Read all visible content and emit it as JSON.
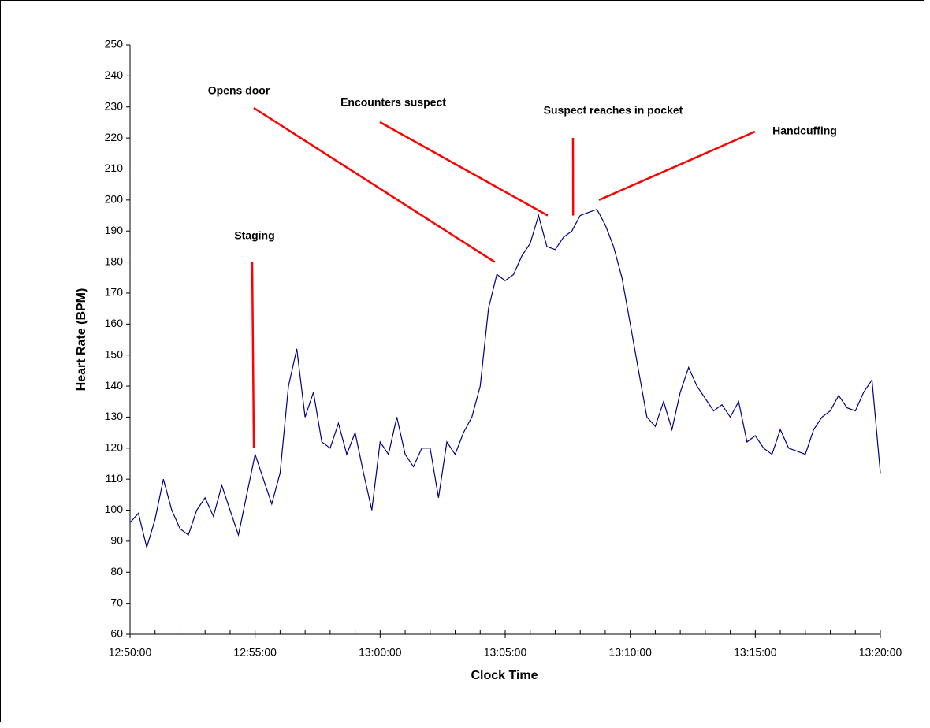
{
  "chart_data": {
    "type": "line",
    "x_label": "Clock Time",
    "y_label": "Heart Rate (BPM)",
    "color": "#000080",
    "annotation_color": "#ff0000",
    "xlim": [
      "12:50:00",
      "13:20:00"
    ],
    "xticks": [
      "12:50:00",
      "12:55:00",
      "13:00:00",
      "13:05:00",
      "13:10:00",
      "13:15:00",
      "13:20:00"
    ],
    "xminor_ticks": [
      "12:51:00",
      "12:52:00",
      "12:53:00",
      "12:54:00",
      "12:56:00",
      "12:57:00",
      "12:58:00",
      "12:59:00",
      "13:01:00",
      "13:02:00",
      "13:03:00",
      "13:04:00",
      "13:06:00",
      "13:07:00",
      "13:08:00",
      "13:09:00",
      "13:11:00",
      "13:12:00",
      "13:13:00",
      "13:14:00",
      "13:16:00",
      "13:17:00",
      "13:18:00",
      "13:19:00"
    ],
    "ylim": [
      60,
      250
    ],
    "yticks": [
      60,
      70,
      80,
      90,
      100,
      110,
      120,
      130,
      140,
      150,
      160,
      170,
      180,
      190,
      200,
      210,
      220,
      230,
      240,
      250
    ],
    "x": [
      "12:50:00",
      "12:50:20",
      "12:50:40",
      "12:51:00",
      "12:51:20",
      "12:51:40",
      "12:52:00",
      "12:52:20",
      "12:52:40",
      "12:53:00",
      "12:53:20",
      "12:53:40",
      "12:54:00",
      "12:54:20",
      "12:54:40",
      "12:55:00",
      "12:55:20",
      "12:55:40",
      "12:56:00",
      "12:56:20",
      "12:56:40",
      "12:57:00",
      "12:57:20",
      "12:57:40",
      "12:58:00",
      "12:58:20",
      "12:58:40",
      "12:59:00",
      "12:59:20",
      "12:59:40",
      "13:00:00",
      "13:00:20",
      "13:00:40",
      "13:01:00",
      "13:01:20",
      "13:01:40",
      "13:02:00",
      "13:02:20",
      "13:02:40",
      "13:03:00",
      "13:03:20",
      "13:03:40",
      "13:04:00",
      "13:04:20",
      "13:04:40",
      "13:05:00",
      "13:05:20",
      "13:05:40",
      "13:06:00",
      "13:06:20",
      "13:06:40",
      "13:07:00",
      "13:07:20",
      "13:07:40",
      "13:08:00",
      "13:08:20",
      "13:08:40",
      "13:09:00",
      "13:09:20",
      "13:09:40",
      "13:10:00",
      "13:10:20",
      "13:10:40",
      "13:11:00",
      "13:11:20",
      "13:11:40",
      "13:12:00",
      "13:12:20",
      "13:12:40",
      "13:13:00",
      "13:13:20",
      "13:13:40",
      "13:14:00",
      "13:14:20",
      "13:14:40",
      "13:15:00",
      "13:15:20",
      "13:15:40",
      "13:16:00",
      "13:16:20",
      "13:16:40",
      "13:17:00",
      "13:17:20",
      "13:17:40",
      "13:18:00",
      "13:18:20",
      "13:18:40",
      "13:19:00",
      "13:19:20",
      "13:19:40",
      "13:20:00"
    ],
    "values": [
      96,
      99,
      88,
      97,
      110,
      100,
      94,
      92,
      100,
      104,
      98,
      108,
      100,
      92,
      105,
      118,
      110,
      102,
      112,
      140,
      152,
      130,
      138,
      122,
      120,
      128,
      118,
      125,
      112,
      100,
      122,
      118,
      130,
      118,
      114,
      120,
      120,
      104,
      122,
      118,
      125,
      130,
      140,
      165,
      176,
      174,
      176,
      182,
      186,
      195,
      185,
      184,
      188,
      190,
      195,
      196,
      197,
      192,
      185,
      175,
      160,
      145,
      130,
      127,
      135,
      126,
      138,
      146,
      140,
      136,
      132,
      134,
      130,
      135,
      122,
      124,
      120,
      118,
      126,
      120,
      119,
      118,
      126,
      130,
      132,
      137,
      133,
      132,
      138,
      142,
      112
    ],
    "annotations": [
      {
        "text": "Staging",
        "x": "12:54:57",
        "y": 120
      },
      {
        "text": "Opens door",
        "x": "13:04:35",
        "y": 180
      },
      {
        "text": "Encounters suspect",
        "x": "13:06:42",
        "y": 195
      },
      {
        "text": "Suspect reaches in pocket",
        "x": "13:07:43",
        "y": 195
      },
      {
        "text": "Handcuffing",
        "x": "13:08:45",
        "y": 200
      }
    ]
  }
}
